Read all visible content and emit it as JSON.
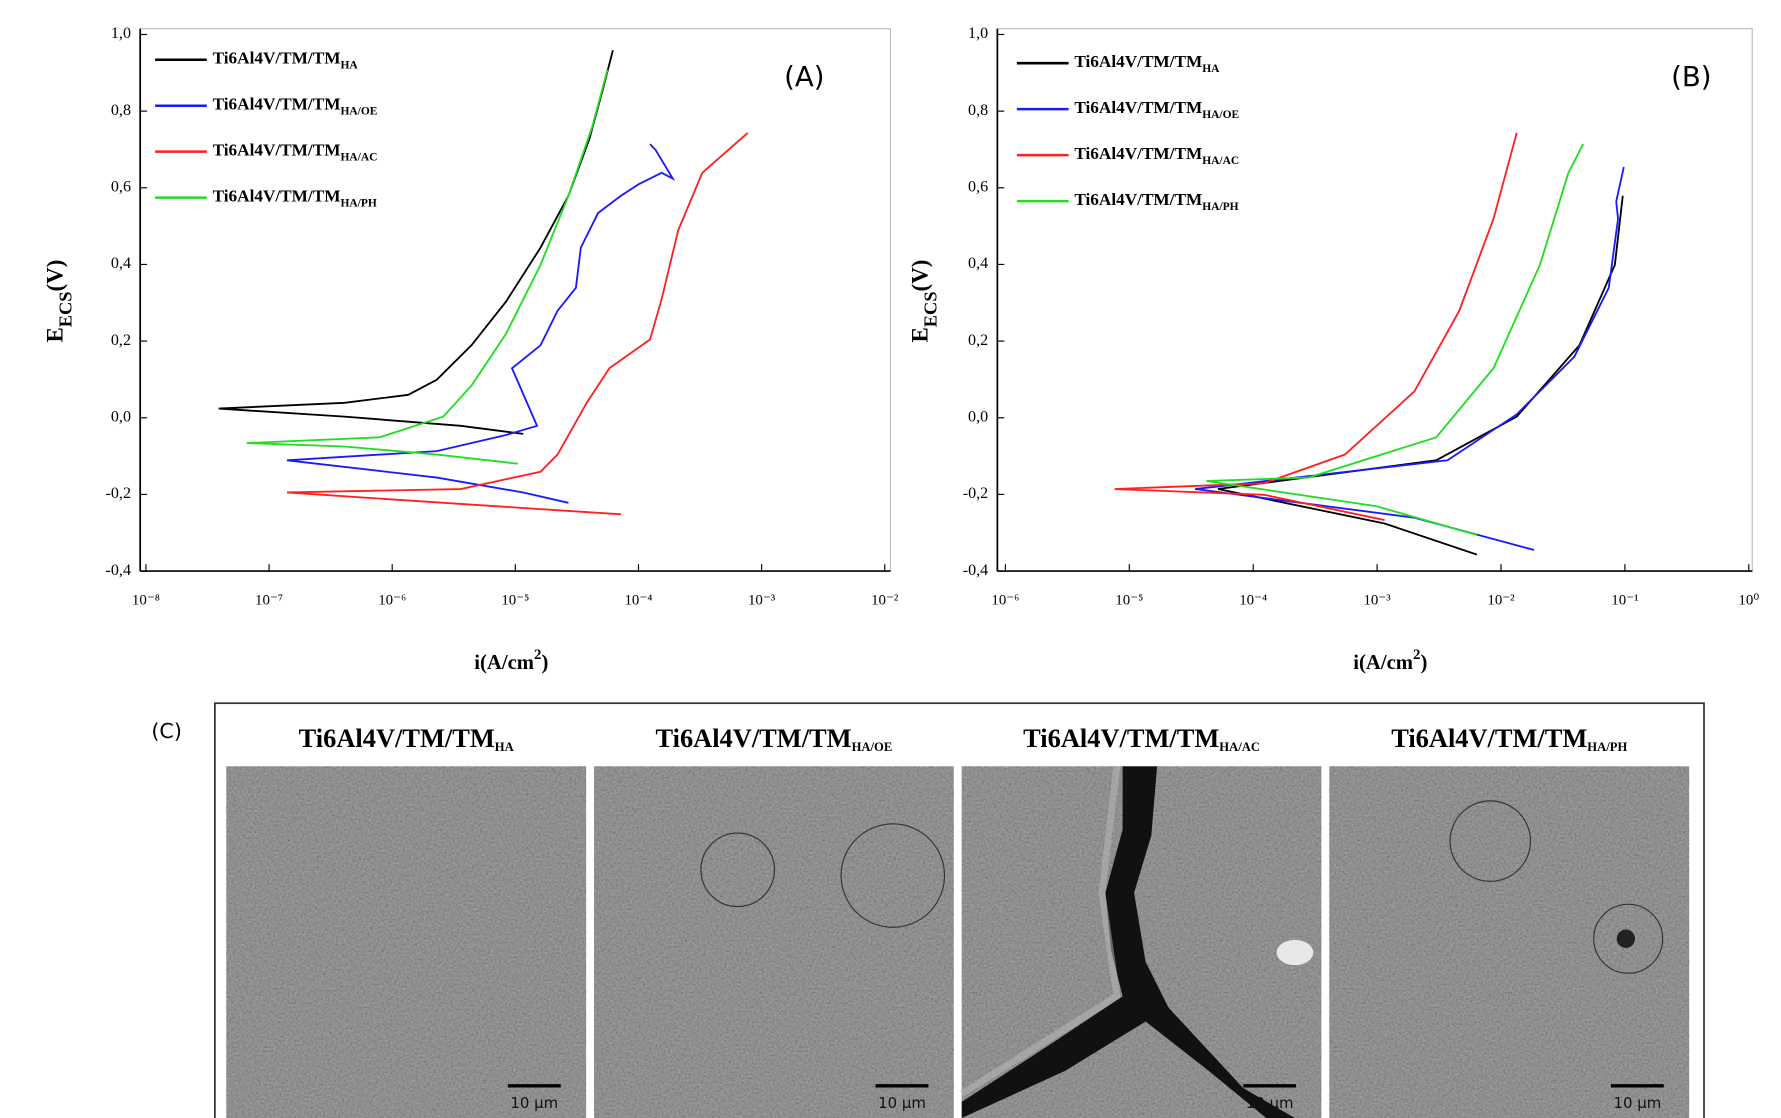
{
  "chart_data": [
    {
      "type": "line",
      "annotation": "(A)",
      "xlabel": "i(A/cm2)",
      "ylabel": "EECS(V)",
      "log_x": true,
      "legend": "upper left",
      "xlim": [
        1e-08,
        0.01
      ],
      "ylim": [
        -0.4,
        1.0
      ],
      "xticks": [
        {
          "value": 1e-08,
          "label": "10⁻⁸"
        },
        {
          "value": 1e-07,
          "label": "10⁻⁷"
        },
        {
          "value": 1e-06,
          "label": "10⁻⁶"
        },
        {
          "value": 1e-05,
          "label": "10⁻⁵"
        },
        {
          "value": 0.0001,
          "label": "10⁻⁴"
        },
        {
          "value": 0.001,
          "label": "10⁻³"
        },
        {
          "value": 0.01,
          "label": "10⁻²"
        }
      ],
      "yticks": [
        {
          "value": -0.4,
          "label": "-0,4"
        },
        {
          "value": -0.2,
          "label": "-0,2"
        },
        {
          "value": 0,
          "label": "0,0"
        },
        {
          "value": 0.2,
          "label": "0,2"
        },
        {
          "value": 0.4,
          "label": "0,4"
        },
        {
          "value": 0.6,
          "label": "0,6"
        },
        {
          "value": 0.8,
          "label": "0,8"
        },
        {
          "value": 1.0,
          "label": "1,0"
        }
      ],
      "series": [
        {
          "name": "Ti6Al4V/TM/TMHA",
          "color": "#000000",
          "x": [
            1.16e-05,
            3.6e-06,
            4.1e-07,
            3.9e-08,
            4.1e-07,
            1.35e-06,
            2.3e-06,
            4.4e-06,
            8.4e-06,
            1.6e-05,
            2.7e-05,
            4e-05,
            5.2e-05,
            6.2e-05
          ],
          "values": [
            -0.042,
            -0.021,
            0.003,
            0.024,
            0.039,
            0.06,
            0.099,
            0.189,
            0.303,
            0.444,
            0.579,
            0.728,
            0.863,
            0.959
          ]
        },
        {
          "name": "Ti6Al4V/TM/TMHA/OE",
          "color": "#1a1aff",
          "x": [
            2.7e-05,
            1.16e-05,
            2.3e-06,
            1.4e-07,
            2.3e-06,
            8.4e-06,
            1.5e-05,
            9.4e-06,
            1.6e-05,
            2.2e-05,
            3.1e-05,
            3.4e-05,
            4.7e-05,
            7.2e-05,
            0.0001,
            0.000154,
            0.00019,
            0.000138,
            0.000124
          ],
          "values": [
            -0.222,
            -0.195,
            -0.156,
            -0.111,
            -0.087,
            -0.045,
            -0.021,
            0.129,
            0.189,
            0.279,
            0.339,
            0.444,
            0.534,
            0.579,
            0.609,
            0.639,
            0.624,
            0.698,
            0.714
          ]
        },
        {
          "name": "Ti6Al4V/TM/TMHA/AC",
          "color": "#ff2020",
          "x": [
            7.2e-05,
            3.6e-06,
            1.4e-07,
            3.6e-06,
            1.6e-05,
            2.2e-05,
            3.8e-05,
            5.8e-05,
            0.000124,
            0.000154,
            0.00021,
            0.00033,
            0.00077
          ],
          "values": [
            -0.252,
            -0.225,
            -0.195,
            -0.186,
            -0.141,
            -0.096,
            0.039,
            0.129,
            0.204,
            0.309,
            0.489,
            0.639,
            0.743
          ]
        },
        {
          "name": "Ti6Al4V/TM/TMHA/PH",
          "color": "#22dd22",
          "x": [
            1.05e-05,
            2.3e-06,
            4.1e-07,
            6.6e-08,
            7.9e-07,
            2.6e-06,
            4.4e-06,
            8.4e-06,
            1.6e-05,
            2.7e-05,
            4.2e-05,
            5.6e-05
          ],
          "values": [
            -0.12,
            -0.096,
            -0.075,
            -0.066,
            -0.051,
            0.003,
            0.084,
            0.219,
            0.399,
            0.579,
            0.758,
            0.908
          ]
        }
      ]
    },
    {
      "type": "line",
      "annotation": "(B)",
      "xlabel": "i(A/cm2)",
      "ylabel": "EECS(V)",
      "log_x": true,
      "legend": "upper left",
      "xlim": [
        1e-06,
        1
      ],
      "ylim": [
        -0.4,
        1.0
      ],
      "xticks": [
        {
          "value": 1e-06,
          "label": "10⁻⁶"
        },
        {
          "value": 1e-05,
          "label": "10⁻⁵"
        },
        {
          "value": 0.0001,
          "label": "10⁻⁴"
        },
        {
          "value": 0.001,
          "label": "10⁻³"
        },
        {
          "value": 0.01,
          "label": "10⁻²"
        },
        {
          "value": 0.1,
          "label": "10⁻¹"
        },
        {
          "value": 1,
          "label": "10⁰"
        }
      ],
      "yticks": [
        {
          "value": -0.4,
          "label": "-0,4"
        },
        {
          "value": -0.2,
          "label": "-0,2"
        },
        {
          "value": 0,
          "label": "0,0"
        },
        {
          "value": 0.2,
          "label": "0,2"
        },
        {
          "value": 0.4,
          "label": "0,4"
        },
        {
          "value": 0.6,
          "label": "0,6"
        },
        {
          "value": 0.8,
          "label": "0,8"
        },
        {
          "value": 1.0,
          "label": "1,0"
        }
      ],
      "series": [
        {
          "name": "Ti6Al4V/TM/TMHA",
          "color": "#000000",
          "x": [
            0.0064,
            0.00115,
            5.2e-05,
            0.003,
            0.0134,
            0.043,
            0.083,
            0.096
          ],
          "values": [
            -0.357,
            -0.276,
            -0.186,
            -0.111,
            0.003,
            0.189,
            0.399,
            0.579
          ]
        },
        {
          "name": "Ti6Al4V/TM/TMHA/OE",
          "color": "#1a1aff",
          "x": [
            0.0185,
            0.002,
            3.4e-05,
            0.0037,
            0.0134,
            0.039,
            0.074,
            0.088,
            0.085,
            0.098
          ],
          "values": [
            -0.345,
            -0.261,
            -0.186,
            -0.111,
            0.009,
            0.159,
            0.339,
            0.519,
            0.564,
            0.654
          ]
        },
        {
          "name": "Ti6Al4V/TM/TMHA/AC",
          "color": "#ff2020",
          "x": [
            0.00115,
            0.000122,
            7.6e-06,
            0.000122,
            0.00055,
            0.002,
            0.0046,
            0.0087,
            0.0134
          ],
          "values": [
            -0.267,
            -0.201,
            -0.186,
            -0.171,
            -0.096,
            0.069,
            0.279,
            0.519,
            0.743
          ]
        },
        {
          "name": "Ti6Al4V/TM/TMHA/PH",
          "color": "#22dd22",
          "x": [
            0.0064,
            0.00099,
            4.2e-05,
            0.00028,
            0.003,
            0.0087,
            0.0206,
            0.035,
            0.046
          ],
          "values": [
            -0.306,
            -0.231,
            -0.165,
            -0.156,
            -0.051,
            0.129,
            0.399,
            0.639,
            0.714
          ]
        }
      ]
    }
  ],
  "micrographs": {
    "label": "(C)",
    "panels": [
      {
        "title": "Ti6Al4V/TM/TMHA",
        "scale_bar": "10 µm"
      },
      {
        "title": "Ti6Al4V/TM/TMHA/OE",
        "scale_bar": "10 µm"
      },
      {
        "title": "Ti6Al4V/TM/TMHA/AC",
        "scale_bar": "10 µm"
      },
      {
        "title": "Ti6Al4V/TM/TMHA/PH",
        "scale_bar": "10 µm"
      }
    ]
  }
}
